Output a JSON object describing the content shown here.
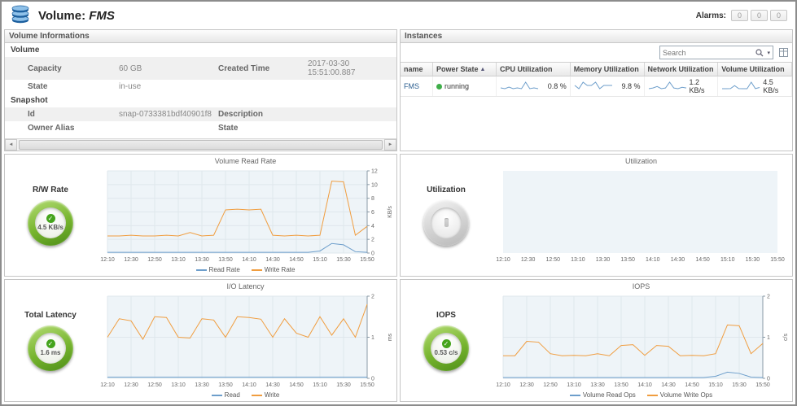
{
  "header": {
    "title_prefix": "Volume:",
    "title_name": "FMS",
    "alarms_label": "Alarms:",
    "alarm_counts": [
      "0",
      "0",
      "0"
    ]
  },
  "icons": {
    "scroll_left": "◄",
    "scroll_right": "►",
    "search_caret": "▾",
    "sort_asc": "▲",
    "check": "✓"
  },
  "volume_info": {
    "title": "Volume Informations",
    "volume_section": "Volume",
    "snapshot_section": "Snapshot",
    "capacity_label": "Capacity",
    "capacity_value": "60 GB",
    "created_label": "Created Time",
    "created_value": "2017-03-30 15:51:00.887",
    "state_label": "State",
    "state_value": "in-use",
    "id_label": "Id",
    "id_value": "snap-0733381bdf40901f8",
    "description_label": "Description",
    "description_value": "",
    "owner_label": "Owner Alias",
    "owner_value": "",
    "snap_state_label": "State",
    "snap_state_value": ""
  },
  "instances": {
    "title": "Instances",
    "search_placeholder": "Search",
    "columns": {
      "name": "name",
      "power": "Power State",
      "cpu": "CPU Utilization",
      "memory": "Memory Utilization",
      "network": "Network Utilization",
      "volume": "Volume Utilization"
    },
    "row": {
      "name": "FMS",
      "power_state": "running",
      "cpu_value": "0.8 %",
      "memory_value": "9.8 %",
      "network_value": "1.2 KB/s",
      "volume_value": "4.5 KB/s"
    },
    "sparklines": {
      "cpu": [
        0.9,
        0.8,
        1.0,
        0.8,
        0.9,
        0.8,
        1.6,
        0.8,
        0.9,
        0.8
      ],
      "memory": [
        9.8,
        9.7,
        9.9,
        9.8,
        9.8,
        9.9,
        9.7,
        9.8,
        9.8,
        9.8
      ],
      "network": [
        1.1,
        1.2,
        1.4,
        1.1,
        1.2,
        2.0,
        1.2,
        1.1,
        1.3,
        1.2
      ],
      "volume": [
        2.5,
        2.5,
        2.6,
        6.3,
        2.6,
        2.5,
        2.5,
        10.5,
        2.6,
        4.0
      ]
    }
  },
  "gauges": {
    "rw_rate": {
      "label": "R/W Rate",
      "value": "4.5 KB/s"
    },
    "utilization": {
      "label": "Utilization",
      "value": ""
    },
    "total_latency": {
      "label": "Total Latency",
      "value": "1.6 ms"
    },
    "iops": {
      "label": "IOPS",
      "value": "0.53 c/s"
    }
  },
  "chart_data": {
    "read_rate": {
      "type": "line",
      "title": "Volume Read Rate",
      "ylabel": "KB/s",
      "ylim": [
        0,
        12
      ],
      "yticks": [
        0,
        2,
        4,
        6,
        8,
        10,
        12
      ],
      "xticks": [
        "12:10",
        "12:30",
        "12:50",
        "13:10",
        "13:30",
        "13:50",
        "14:10",
        "14:30",
        "14:50",
        "15:10",
        "15:30",
        "15:50"
      ],
      "series": [
        {
          "name": "Read Rate",
          "color": "#6d9ecb",
          "values": [
            0.1,
            0.1,
            0.1,
            0.1,
            0.1,
            0.1,
            0.1,
            0.1,
            0.1,
            0.1,
            0.1,
            0.1,
            0.1,
            0.1,
            0.1,
            0.1,
            0.1,
            0.1,
            0.3,
            1.4,
            1.2,
            0.2,
            0.1
          ]
        },
        {
          "name": "Write Rate",
          "color": "#f09d3f",
          "values": [
            2.5,
            2.5,
            2.6,
            2.5,
            2.5,
            2.6,
            2.5,
            3.0,
            2.5,
            2.6,
            6.3,
            6.4,
            6.3,
            6.4,
            2.6,
            2.5,
            2.6,
            2.5,
            2.6,
            10.5,
            10.4,
            2.6,
            3.9
          ]
        }
      ]
    },
    "utilization": {
      "type": "line",
      "title": "Utilization",
      "ylabel": "",
      "ylim": [
        0,
        1
      ],
      "yticks": [],
      "xticks": [
        "12:10",
        "12:30",
        "12:50",
        "13:10",
        "13:30",
        "13:50",
        "14:10",
        "14:30",
        "14:50",
        "15:10",
        "15:30",
        "15:50"
      ],
      "series": []
    },
    "io_latency": {
      "type": "line",
      "title": "I/O Latency",
      "ylabel": "ms",
      "ylim": [
        0,
        2
      ],
      "yticks": [
        0,
        1,
        2
      ],
      "xticks": [
        "12:10",
        "12:30",
        "12:50",
        "13:10",
        "13:30",
        "13:50",
        "14:10",
        "14:30",
        "14:50",
        "15:10",
        "15:30",
        "15:50"
      ],
      "series": [
        {
          "name": "Read",
          "color": "#6d9ecb",
          "values": [
            0.03,
            0.03,
            0.03,
            0.03,
            0.03,
            0.03,
            0.03,
            0.03,
            0.03,
            0.03,
            0.03,
            0.03,
            0.03,
            0.03,
            0.03,
            0.03,
            0.03,
            0.03,
            0.03,
            0.03,
            0.03,
            0.03,
            0.03
          ]
        },
        {
          "name": "Write",
          "color": "#f09d3f",
          "values": [
            1.0,
            1.45,
            1.4,
            0.95,
            1.5,
            1.48,
            1.0,
            0.98,
            1.45,
            1.42,
            1.0,
            1.5,
            1.48,
            1.44,
            1.0,
            1.45,
            1.1,
            1.0,
            1.5,
            1.05,
            1.45,
            1.0,
            1.8
          ]
        }
      ]
    },
    "iops": {
      "type": "line",
      "title": "IOPS",
      "ylabel": "c/s",
      "ylim": [
        0,
        2
      ],
      "yticks": [
        0,
        1,
        2
      ],
      "xticks": [
        "12:10",
        "12:30",
        "12:50",
        "13:10",
        "13:30",
        "13:50",
        "14:10",
        "14:30",
        "14:50",
        "15:10",
        "15:30",
        "15:50"
      ],
      "series": [
        {
          "name": "Volume Read Ops",
          "color": "#6d9ecb",
          "values": [
            0.02,
            0.02,
            0.02,
            0.02,
            0.02,
            0.02,
            0.02,
            0.02,
            0.02,
            0.02,
            0.02,
            0.02,
            0.02,
            0.02,
            0.02,
            0.02,
            0.02,
            0.02,
            0.05,
            0.15,
            0.12,
            0.03,
            0.02
          ]
        },
        {
          "name": "Volume Write Ops",
          "color": "#f09d3f",
          "values": [
            0.55,
            0.55,
            0.9,
            0.88,
            0.6,
            0.55,
            0.56,
            0.55,
            0.6,
            0.55,
            0.8,
            0.82,
            0.56,
            0.8,
            0.78,
            0.55,
            0.56,
            0.55,
            0.6,
            1.3,
            1.28,
            0.6,
            0.85
          ]
        }
      ]
    }
  }
}
